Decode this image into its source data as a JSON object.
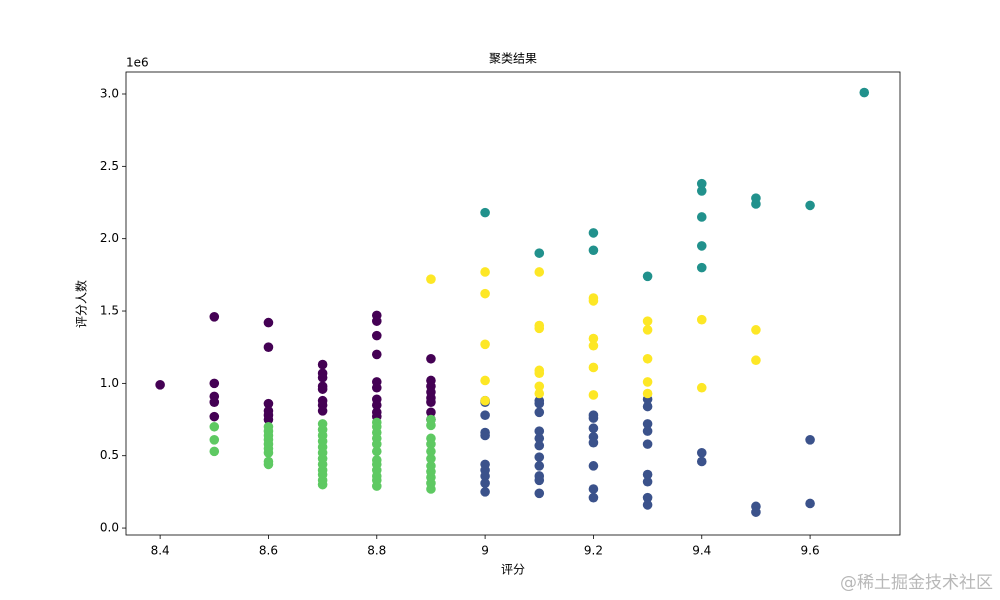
{
  "chart_data": {
    "type": "scatter",
    "title": "聚类结果",
    "x_label": "评分",
    "y_label": "评分人数",
    "y_offset_label": "1e6",
    "xlim": [
      8.337,
      9.766
    ],
    "ylim": [
      -0.048,
      3.152
    ],
    "xticks": [
      8.4,
      8.6,
      8.8,
      9.0,
      9.2,
      9.4,
      9.6
    ],
    "yticks": [
      {
        "value": 0,
        "label": "0.0"
      },
      0.5,
      {
        "value": 1,
        "label": "1.0"
      },
      1.5,
      {
        "value": 2,
        "label": "2.0"
      },
      2.5,
      {
        "value": 3,
        "label": "3.0"
      }
    ],
    "series": [
      {
        "color": "#440154",
        "x": [
          8.4,
          8.5,
          8.5,
          8.5,
          8.5,
          8.5,
          8.6,
          8.6,
          8.6,
          8.6,
          8.6,
          8.6,
          8.7,
          8.7,
          8.7,
          8.7,
          8.7,
          8.7,
          8.7,
          8.7,
          8.8,
          8.8,
          8.8,
          8.8,
          8.8,
          8.8,
          8.8,
          8.8,
          8.8,
          8.8,
          8.9,
          8.9,
          8.9,
          8.9,
          8.9,
          8.9,
          8.9,
          8.9
        ],
        "values": [
          0.99,
          1.46,
          1.0,
          0.91,
          0.87,
          0.77,
          1.42,
          1.25,
          0.86,
          0.81,
          0.78,
          0.75,
          1.13,
          1.07,
          1.04,
          0.98,
          0.96,
          0.88,
          0.85,
          0.81,
          1.47,
          1.43,
          1.33,
          1.2,
          1.01,
          0.97,
          0.89,
          0.85,
          0.8,
          0.77,
          1.17,
          1.02,
          0.98,
          0.94,
          0.9,
          0.87,
          0.8,
          0.75
        ]
      },
      {
        "color": "#5ec962",
        "x": [
          8.5,
          8.5,
          8.5,
          8.6,
          8.6,
          8.6,
          8.6,
          8.6,
          8.6,
          8.6,
          8.6,
          8.6,
          8.7,
          8.7,
          8.7,
          8.7,
          8.7,
          8.7,
          8.7,
          8.7,
          8.7,
          8.7,
          8.7,
          8.7,
          8.8,
          8.8,
          8.8,
          8.8,
          8.8,
          8.8,
          8.8,
          8.8,
          8.8,
          8.8,
          8.8,
          8.8,
          8.9,
          8.9,
          8.9,
          8.9,
          8.9,
          8.9,
          8.9,
          8.9,
          8.9,
          8.9,
          8.9
        ],
        "values": [
          0.7,
          0.61,
          0.53,
          0.7,
          0.67,
          0.64,
          0.61,
          0.58,
          0.55,
          0.52,
          0.46,
          0.44,
          0.72,
          0.68,
          0.64,
          0.6,
          0.56,
          0.52,
          0.48,
          0.44,
          0.4,
          0.37,
          0.33,
          0.3,
          0.73,
          0.7,
          0.66,
          0.62,
          0.58,
          0.53,
          0.47,
          0.44,
          0.4,
          0.36,
          0.33,
          0.29,
          0.75,
          0.71,
          0.62,
          0.58,
          0.53,
          0.48,
          0.43,
          0.39,
          0.35,
          0.31,
          0.27
        ]
      },
      {
        "color": "#3b528b",
        "x": [
          9.0,
          9.0,
          9.0,
          9.0,
          9.0,
          9.0,
          9.0,
          9.0,
          9.0,
          9.0,
          9.1,
          9.1,
          9.1,
          9.1,
          9.1,
          9.1,
          9.1,
          9.1,
          9.1,
          9.1,
          9.1,
          9.2,
          9.2,
          9.2,
          9.2,
          9.2,
          9.2,
          9.2,
          9.2,
          9.3,
          9.3,
          9.3,
          9.3,
          9.3,
          9.3,
          9.3,
          9.3,
          9.3,
          9.4,
          9.4,
          9.5,
          9.5,
          9.6,
          9.6
        ],
        "values": [
          0.88,
          0.87,
          0.78,
          0.66,
          0.64,
          0.44,
          0.4,
          0.36,
          0.31,
          0.25,
          0.88,
          0.86,
          0.8,
          0.67,
          0.62,
          0.57,
          0.49,
          0.43,
          0.36,
          0.33,
          0.24,
          0.78,
          0.76,
          0.69,
          0.63,
          0.59,
          0.43,
          0.27,
          0.21,
          0.89,
          0.84,
          0.72,
          0.67,
          0.58,
          0.37,
          0.32,
          0.21,
          0.16,
          0.52,
          0.46,
          0.15,
          0.11,
          0.61,
          0.17
        ]
      },
      {
        "color": "#fde725",
        "x": [
          8.9,
          9.0,
          9.0,
          9.0,
          9.0,
          9.0,
          9.1,
          9.1,
          9.1,
          9.1,
          9.1,
          9.1,
          9.1,
          9.2,
          9.2,
          9.2,
          9.2,
          9.2,
          9.2,
          9.3,
          9.3,
          9.3,
          9.3,
          9.3,
          9.4,
          9.4,
          9.5,
          9.5
        ],
        "values": [
          1.72,
          1.77,
          1.62,
          1.27,
          1.02,
          0.88,
          1.77,
          1.4,
          1.38,
          1.09,
          1.07,
          0.98,
          0.93,
          1.59,
          1.57,
          1.31,
          1.26,
          1.11,
          0.92,
          1.43,
          1.37,
          1.17,
          1.01,
          0.93,
          1.44,
          0.97,
          1.37,
          1.16
        ]
      },
      {
        "color": "#21918c",
        "x": [
          9.0,
          9.1,
          9.2,
          9.2,
          9.3,
          9.4,
          9.4,
          9.4,
          9.4,
          9.4,
          9.5,
          9.5,
          9.6,
          9.7
        ],
        "values": [
          2.18,
          1.9,
          2.04,
          1.92,
          1.74,
          2.38,
          2.33,
          2.15,
          1.95,
          1.8,
          2.28,
          2.24,
          2.23,
          3.01
        ]
      }
    ]
  },
  "watermark": "@稀土掘金技术社区"
}
